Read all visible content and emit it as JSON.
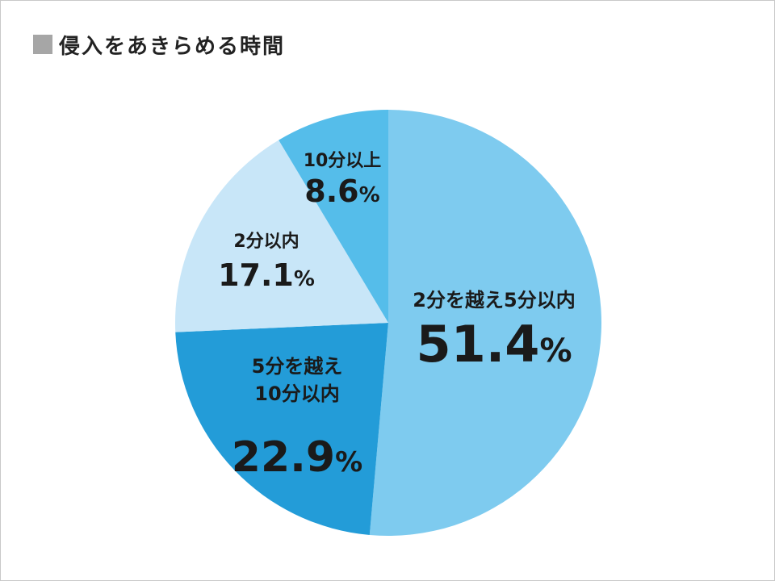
{
  "chart_data": {
    "type": "pie",
    "title": "侵入をあきらめる時間",
    "slices": [
      {
        "label": "2分を越え5分以内",
        "value": 51.4,
        "value_text": "51.4",
        "color": "#7ecbef"
      },
      {
        "label": "5分を越え\n10分以内",
        "value": 22.9,
        "value_text": "22.9",
        "color": "#239cd8"
      },
      {
        "label": "2分以内",
        "value": 17.1,
        "value_text": "17.1",
        "color": "#c8e6f8"
      },
      {
        "label": "10分以上",
        "value": 8.6,
        "value_text": "8.6",
        "color": "#55bdea"
      }
    ],
    "unit": "%",
    "start_angle_deg": 0,
    "direction": "clockwise"
  }
}
